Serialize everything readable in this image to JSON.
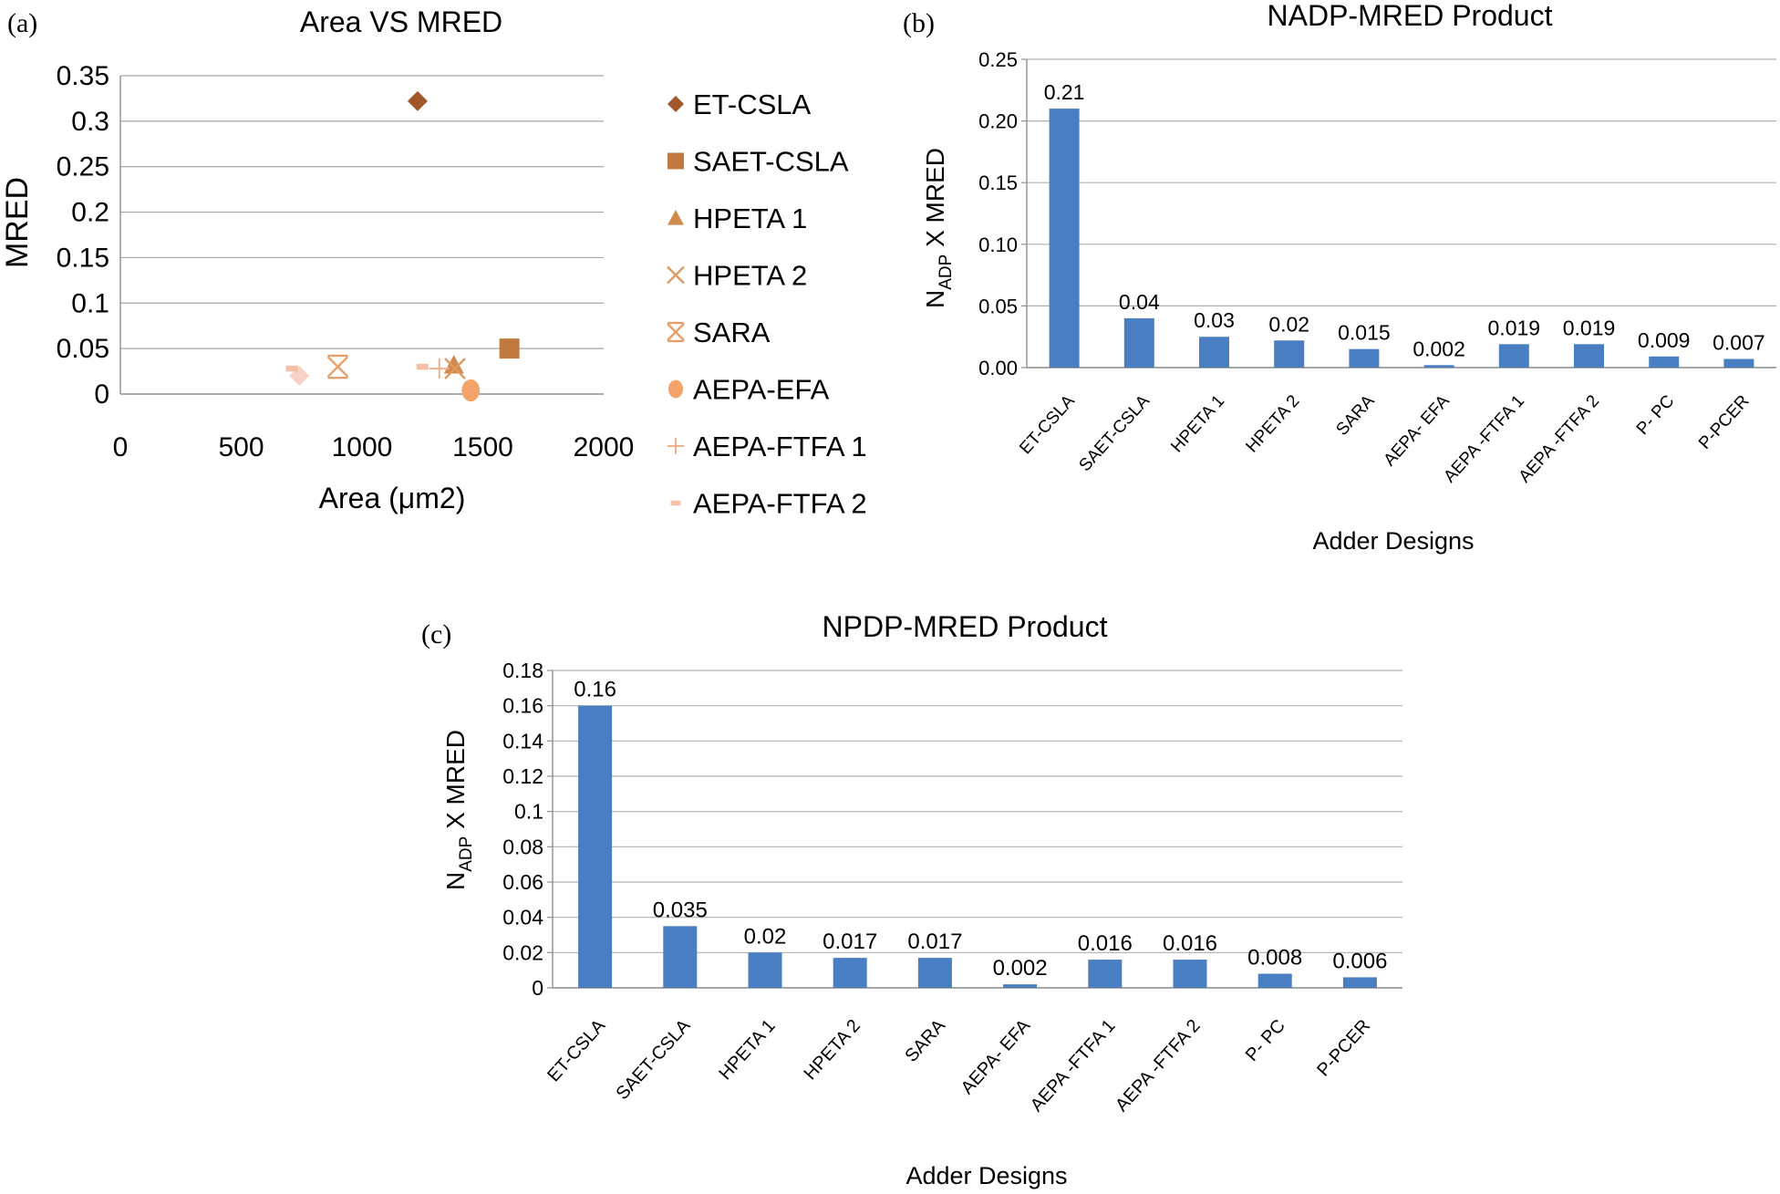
{
  "panels": [
    {
      "label": "(a)"
    },
    {
      "label": "(b)"
    },
    {
      "label": "(c)"
    }
  ],
  "chart_data": [
    {
      "type": "scatter",
      "title": "Area VS MRED",
      "xlabel": "Area (μm2)",
      "ylabel": "MRED",
      "xlim": [
        0,
        2000
      ],
      "ylim": [
        0,
        0.35
      ],
      "x_ticks": [
        "0",
        "500",
        "1000",
        "1500",
        "2000"
      ],
      "y_ticks": [
        "0",
        "0.05",
        "0.1",
        "0.15",
        "0.2",
        "0.25",
        "0.3",
        "0.35"
      ],
      "grid": "horizontal",
      "legend_position": "right",
      "series": [
        {
          "name": "ET-CSLA",
          "marker": "diamond",
          "color": "#a0572a",
          "x": 1230,
          "y": 0.322
        },
        {
          "name": "SAET-CSLA",
          "marker": "square",
          "color": "#c07a3e",
          "x": 1610,
          "y": 0.05
        },
        {
          "name": "HPETA 1",
          "marker": "triangle",
          "color": "#d08a4e",
          "x": 1380,
          "y": 0.032
        },
        {
          "name": "HPETA 2",
          "marker": "x",
          "color": "#e09a5e",
          "x": 1385,
          "y": 0.028
        },
        {
          "name": "SARA",
          "marker": "star",
          "color": "#e8a06a",
          "x": 900,
          "y": 0.03
        },
        {
          "name": "AEPA-EFA",
          "marker": "circle",
          "color": "#f4a46a",
          "x": 1450,
          "y": 0.004
        },
        {
          "name": "AEPA-FTFA 1",
          "marker": "plus",
          "color": "#f2b08a",
          "x": 1320,
          "y": 0.028
        },
        {
          "name": "AEPA-FTFA 2",
          "marker": "dash",
          "color": "#f4c0a8",
          "x": 1250,
          "y": 0.03
        }
      ],
      "extra_points": [
        {
          "marker": "diamond",
          "color": "#f8d0c4",
          "x": 740,
          "y": 0.02
        },
        {
          "marker": "dash",
          "color": "#f4c0a8",
          "x": 710,
          "y": 0.028
        }
      ]
    },
    {
      "type": "bar",
      "title": "NADP-MRED Product",
      "xlabel": "Adder Designs",
      "ylabel_main": "N",
      "ylabel_sub": "ADP",
      "ylabel_tail": " X MRED",
      "ylim": [
        0,
        0.25
      ],
      "y_ticks": [
        "0.00",
        "0.05",
        "0.10",
        "0.15",
        "0.20",
        "0.25"
      ],
      "categories": [
        "ET-CSLA",
        "SAET-CSLA",
        "HPETA 1",
        "HPETA 2",
        "SARA",
        "AEPA- EFA",
        "AEPA -FTFA 1",
        "AEPA -FTFA 2",
        "P- PC",
        "P-PCER"
      ],
      "values": [
        0.21,
        0.04,
        0.025,
        0.022,
        0.015,
        0.002,
        0.019,
        0.019,
        0.009,
        0.007
      ],
      "data_labels": [
        "0.21",
        "0.04",
        "0.03",
        "0.02",
        "0.015",
        "0.002",
        "0.019",
        "0.019",
        "0.009",
        "0.007"
      ],
      "bar_color": "#4a7ec2",
      "grid": "horizontal"
    },
    {
      "type": "bar",
      "title": "NPDP-MRED Product",
      "xlabel": "Adder Designs",
      "ylabel_main": "N",
      "ylabel_sub": "ADP",
      "ylabel_tail": " X MRED",
      "ylim": [
        0,
        0.18
      ],
      "y_ticks": [
        "0",
        "0.02",
        "0.04",
        "0.06",
        "0.08",
        "0.1",
        "0.12",
        "0.14",
        "0.16",
        "0.18"
      ],
      "categories": [
        "ET-CSLA",
        "SAET-CSLA",
        "HPETA 1",
        "HPETA 2",
        "SARA",
        "AEPA- EFA",
        "AEPA -FTFA 1",
        "AEPA -FTFA 2",
        "P- PC",
        "P-PCER"
      ],
      "values": [
        0.16,
        0.035,
        0.02,
        0.017,
        0.017,
        0.002,
        0.016,
        0.016,
        0.008,
        0.006
      ],
      "data_labels": [
        "0.16",
        "0.035",
        "0.02",
        "0.017",
        "0.017",
        "0.002",
        "0.016",
        "0.016",
        "0.008",
        "0.006"
      ],
      "bar_color": "#4a7ec2",
      "grid": "horizontal"
    }
  ]
}
